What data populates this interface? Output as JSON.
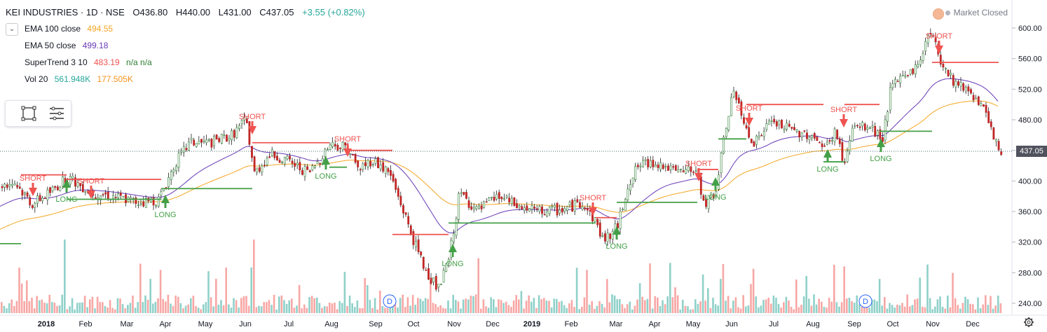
{
  "header": {
    "symbol": "KEI INDUSTRIES · 1D · NSE",
    "open": "O436.80",
    "high": "H440.00",
    "low": "L431.00",
    "close": "C437.05",
    "change": "+3.55 (+0.82%)"
  },
  "indicators": [
    {
      "label": "EMA 100 close",
      "value": "494.55",
      "color": "#f5a623"
    },
    {
      "label": "EMA 50 close",
      "value": "499.18",
      "color": "#673ab7"
    },
    {
      "label": "SuperTrend 3 10",
      "value": "483.19",
      "extra": "n/a  n/a",
      "color": "#ef5350"
    },
    {
      "label": "Vol 20",
      "value": "561.948K",
      "value2": "177.505K",
      "color": "#26a69a",
      "color2": "#f7931e"
    }
  ],
  "market_status": "Market Closed",
  "last_price_tag": "437.05",
  "y_axis": [
    "600.00",
    "560.00",
    "520.00",
    "480.00",
    "440.00",
    "400.00",
    "360.00",
    "320.00",
    "280.00",
    "240.00"
  ],
  "x_axis": [
    "2018",
    "Feb",
    "Mar",
    "Apr",
    "May",
    "Jun",
    "Jul",
    "Aug",
    "Sep",
    "Oct",
    "Nov",
    "Dec",
    "2019",
    "Feb",
    "Mar",
    "Apr",
    "May",
    "Jun",
    "Jul",
    "Aug",
    "Sep",
    "Oct",
    "Nov",
    "Dec"
  ],
  "signals": [
    {
      "label": "SHORT"
    },
    {
      "label": "LONG"
    },
    {
      "label": "SHORT"
    },
    {
      "label": "LONG"
    },
    {
      "label": "SHORT"
    },
    {
      "label": "LONG"
    },
    {
      "label": "SHORT"
    },
    {
      "label": "LONG"
    },
    {
      "label": "SHORT"
    },
    {
      "label": "LONG"
    },
    {
      "label": "SHORT"
    },
    {
      "label": "LONG"
    },
    {
      "label": "SHORT"
    },
    {
      "label": "LONG"
    },
    {
      "label": "SHORT"
    },
    {
      "label": "LONG"
    },
    {
      "label": "SHORT"
    }
  ],
  "dividend_marker": "D",
  "colors": {
    "up": "#26a69a",
    "down": "#ef5350",
    "candle_up": "#2e7d32",
    "candle_down": "#c62828",
    "st_down": "#ef5350",
    "st_up": "#43a047",
    "ema100": "#f5a623",
    "ema50": "#673ab7"
  }
}
